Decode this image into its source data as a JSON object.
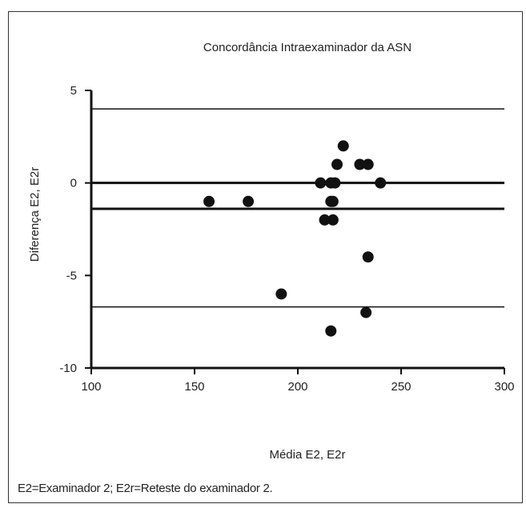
{
  "chart_data": {
    "type": "scatter",
    "title": "Concordância Intraexaminador da ASN",
    "xlabel": "Média E2, E2r",
    "ylabel": "Diferença E2, E2r",
    "xlim": [
      100,
      300
    ],
    "ylim": [
      -10,
      5
    ],
    "xticks": [
      100,
      150,
      200,
      250,
      300
    ],
    "yticks": [
      -10,
      -5,
      0,
      5
    ],
    "reference_lines": [
      {
        "y": 4.0,
        "kind": "upper-limit"
      },
      {
        "y": 0,
        "kind": "zero"
      },
      {
        "y": -1.4,
        "kind": "mean-difference"
      },
      {
        "y": -6.7,
        "kind": "lower-limit"
      }
    ],
    "points": [
      {
        "x": 157,
        "y": -1
      },
      {
        "x": 176,
        "y": -1
      },
      {
        "x": 192,
        "y": -6
      },
      {
        "x": 211,
        "y": 0
      },
      {
        "x": 213,
        "y": -2
      },
      {
        "x": 216,
        "y": 0
      },
      {
        "x": 216,
        "y": -1
      },
      {
        "x": 216,
        "y": -8
      },
      {
        "x": 217,
        "y": -2
      },
      {
        "x": 217,
        "y": -1
      },
      {
        "x": 218,
        "y": 0
      },
      {
        "x": 219,
        "y": 1
      },
      {
        "x": 222,
        "y": 2
      },
      {
        "x": 230,
        "y": 1
      },
      {
        "x": 233,
        "y": -7
      },
      {
        "x": 234,
        "y": -4
      },
      {
        "x": 234,
        "y": 1
      },
      {
        "x": 240,
        "y": 0
      }
    ],
    "grid": false,
    "legend": "none"
  },
  "caption": "E2=Examinador 2; E2r=Reteste do examinador 2."
}
